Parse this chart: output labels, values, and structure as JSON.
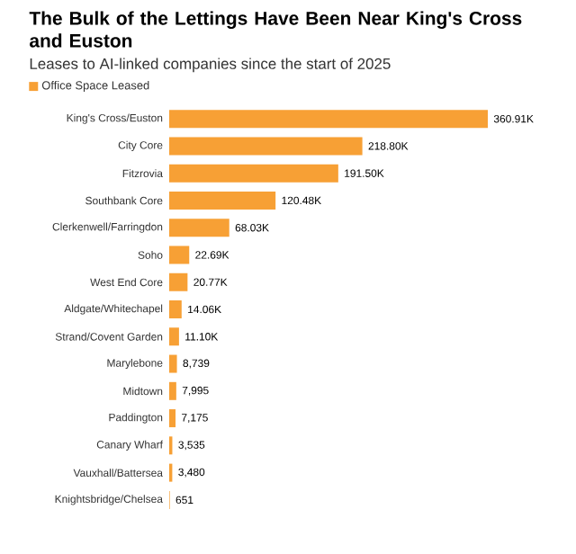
{
  "chart_data": {
    "type": "bar",
    "orientation": "horizontal",
    "title": "The Bulk of the Lettings Have Been Near King's Cross and Euston",
    "subtitle": "Leases to AI-linked companies since the start of 2025",
    "categories": [
      "King's Cross/Euston",
      "City Core",
      "Fitzrovia",
      "Southbank Core",
      "Clerkenwell/Farringdon",
      "Soho",
      "West End Core",
      "Aldgate/Whitechapel",
      "Strand/Covent Garden",
      "Marylebone",
      "Midtown",
      "Paddington",
      "Canary Wharf",
      "Vauxhall/Battersea",
      "Knightsbridge/Chelsea"
    ],
    "series": [
      {
        "name": "Office Space Leased",
        "color": "#f7a035",
        "values": [
          360910,
          218800,
          191500,
          120480,
          68030,
          22690,
          20770,
          14060,
          11100,
          8739,
          7995,
          7175,
          3535,
          3480,
          651
        ],
        "value_labels": [
          "360.91K",
          "218.80K",
          "191.50K",
          "120.48K",
          "68.03K",
          "22.69K",
          "20.77K",
          "14.06K",
          "11.10K",
          "8,739",
          "7,995",
          "7,175",
          "3,535",
          "3,480",
          "651"
        ]
      }
    ],
    "legend": "top left"
  }
}
